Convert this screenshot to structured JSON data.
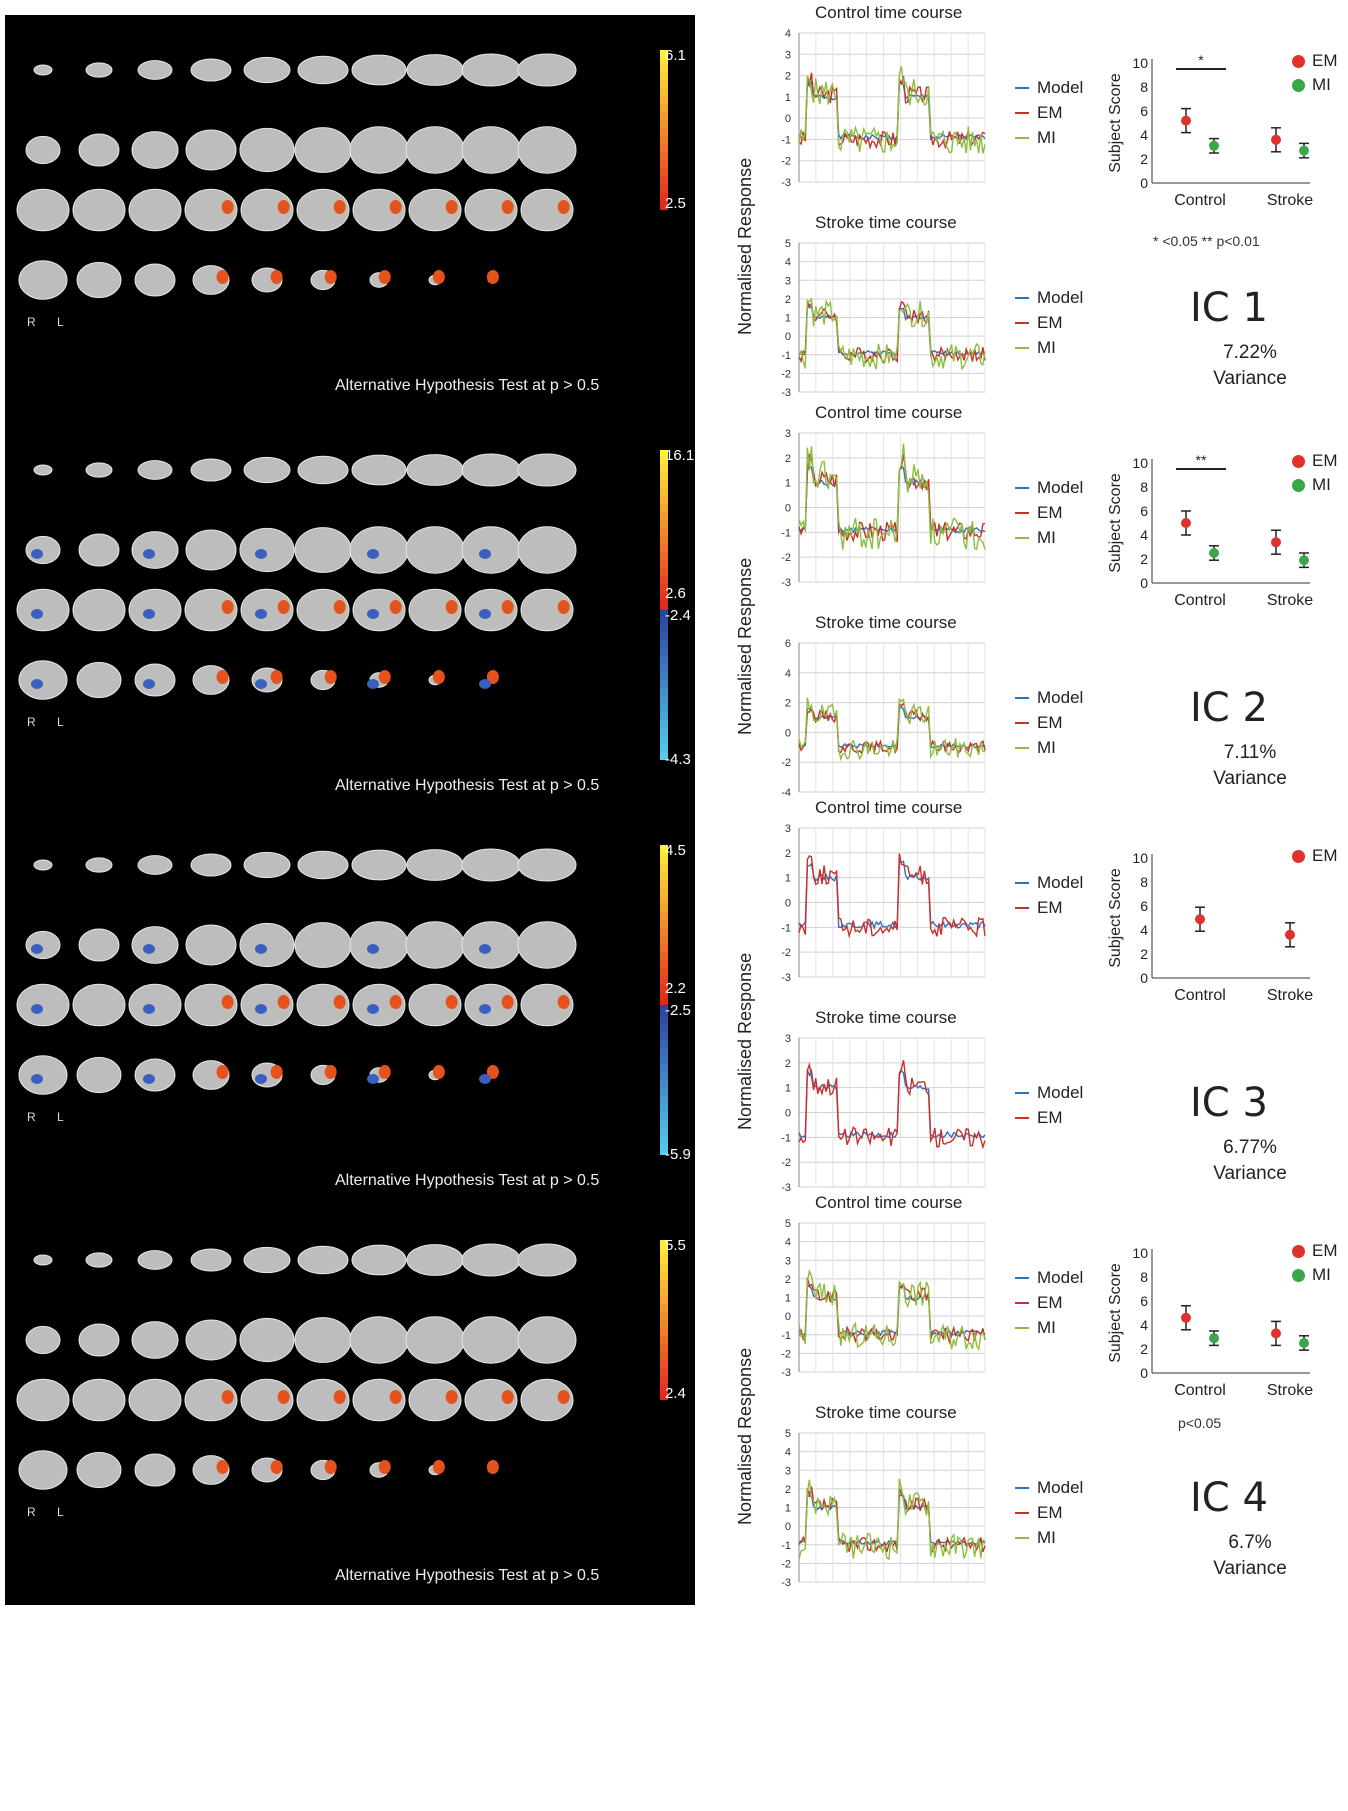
{
  "common": {
    "r_label": "R",
    "l_label": "L",
    "alt_text": "Alternative Hypothesis Test at p > 0.5",
    "control_title": "Control time course",
    "stroke_title": "Stroke time course",
    "ylabel": "Normalised Response",
    "score_ylabel": "Subject Score",
    "x_categories": [
      "Control",
      "Stroke"
    ],
    "legend_model": "Model",
    "legend_em": "EM",
    "legend_mi": "MI",
    "variance_label": "Variance",
    "colors": {
      "model": "#2f6fc0",
      "em": "#c9302c",
      "mi": "#8bbf3f",
      "em_dot": "#e0322c",
      "mi_dot": "#3aa54a"
    }
  },
  "panels": [
    {
      "ic": "IC 1",
      "variance": "7.22%",
      "colorbar": {
        "top": "6.1",
        "mid_pos": "2.5",
        "mid_neg": "",
        "bottom": ""
      },
      "has_mi": true,
      "significance": "*",
      "note": "* <0.05 ** p<0.01",
      "control_yticks": [
        "4",
        "3",
        "2",
        "1",
        "0",
        "-1",
        "-2",
        "-3"
      ],
      "stroke_yticks": [
        "5",
        "4",
        "3",
        "2",
        "1",
        "0",
        "-1",
        "-2",
        "-3"
      ],
      "subject_scores": {
        "Control": {
          "EM": 5.2,
          "MI": 3.1
        },
        "Stroke": {
          "EM": 3.6,
          "MI": 2.7
        }
      }
    },
    {
      "ic": "IC 2",
      "variance": "7.11%",
      "colorbar": {
        "top": "16.1",
        "mid_pos": "2.6",
        "mid_neg": "-2.4",
        "bottom": "-4.3"
      },
      "has_mi": true,
      "significance": "**",
      "note": "",
      "control_yticks": [
        "3",
        "2",
        "1",
        "0",
        "-1",
        "-2",
        "-3"
      ],
      "stroke_yticks": [
        "6",
        "4",
        "2",
        "0",
        "-2",
        "-4"
      ],
      "subject_scores": {
        "Control": {
          "EM": 5.0,
          "MI": 2.5
        },
        "Stroke": {
          "EM": 3.4,
          "MI": 1.9
        }
      }
    },
    {
      "ic": "IC 3",
      "variance": "6.77%",
      "colorbar": {
        "top": "4.5",
        "mid_pos": "2.2",
        "mid_neg": "-2.5",
        "bottom": "-5.9"
      },
      "has_mi": false,
      "significance": "",
      "note": "",
      "control_yticks": [
        "3",
        "2",
        "1",
        "0",
        "-1",
        "-2",
        "-3"
      ],
      "stroke_yticks": [
        "3",
        "2",
        "1",
        "0",
        "-1",
        "-2",
        "-3"
      ],
      "subject_scores": {
        "Control": {
          "EM": 4.9
        },
        "Stroke": {
          "EM": 3.6
        }
      }
    },
    {
      "ic": "IC 4",
      "variance": "6.7%",
      "colorbar": {
        "top": "5.5",
        "mid_pos": "2.4",
        "mid_neg": "",
        "bottom": ""
      },
      "has_mi": true,
      "significance": "",
      "note": "p<0.05",
      "control_yticks": [
        "5",
        "4",
        "3",
        "2",
        "1",
        "0",
        "-1",
        "-2",
        "-3"
      ],
      "stroke_yticks": [
        "5",
        "4",
        "3",
        "2",
        "1",
        "0",
        "-1",
        "-2",
        "-3"
      ],
      "subject_scores": {
        "Control": {
          "EM": 4.6,
          "MI": 2.9
        },
        "Stroke": {
          "EM": 3.3,
          "MI": 2.5
        }
      }
    }
  ],
  "score_yticks": [
    "10",
    "8",
    "6",
    "4",
    "2",
    "0"
  ]
}
